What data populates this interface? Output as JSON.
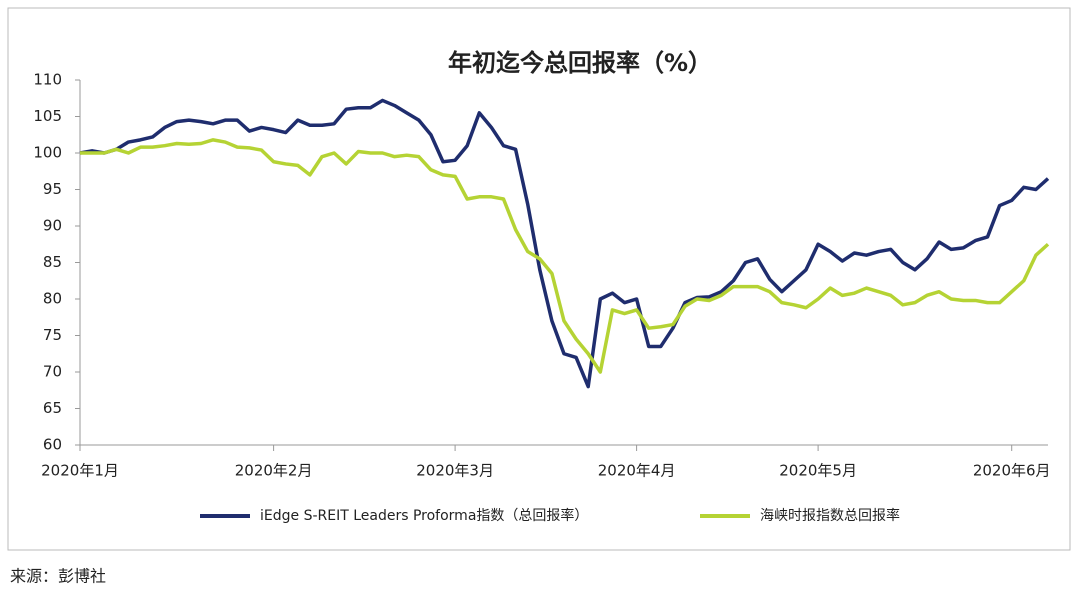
{
  "chart_data": {
    "type": "line",
    "title": "年初迄今总回报率（%）",
    "categories": [
      "2020年1月",
      null,
      null,
      null,
      null,
      null,
      null,
      null,
      null,
      null,
      null,
      null,
      null,
      null,
      null,
      null,
      "2020年2月",
      null,
      null,
      null,
      null,
      null,
      null,
      null,
      null,
      null,
      null,
      null,
      null,
      null,
      null,
      "2020年3月",
      null,
      null,
      null,
      null,
      null,
      null,
      null,
      null,
      null,
      null,
      null,
      null,
      null,
      null,
      "2020年4月",
      null,
      null,
      null,
      null,
      null,
      null,
      null,
      null,
      null,
      null,
      null,
      null,
      null,
      null,
      "2020年5月",
      null,
      null,
      null,
      null,
      null,
      null,
      null,
      null,
      null,
      null,
      null,
      null,
      null,
      null,
      null,
      "2020年6月",
      null,
      null,
      null
    ],
    "series": [
      {
        "name": "iEdge S-REIT Leaders Proforma指数（总回报率）",
        "color": "#1f2d6e",
        "values": [
          100,
          100.3,
          100,
          100.5,
          101.5,
          101.8,
          102.2,
          103.5,
          104.3,
          104.5,
          104.3,
          104,
          104.5,
          104.5,
          103,
          103.5,
          103.2,
          102.8,
          104.5,
          103.8,
          103.8,
          104,
          106,
          106.2,
          106.2,
          107.2,
          106.5,
          105.5,
          104.5,
          102.5,
          98.8,
          99,
          101,
          105.5,
          103.5,
          101,
          100.5,
          93,
          84,
          77,
          72.5,
          72,
          68,
          80,
          80.8,
          79.5,
          80,
          73.5,
          73.5,
          76,
          79.5,
          80.2,
          80.3,
          81,
          82.5,
          85,
          85.5,
          82.7,
          81,
          82.5,
          84,
          87.5,
          86.5,
          85.2,
          86.3,
          86,
          86.5,
          86.8,
          85,
          84,
          85.5,
          87.8,
          86.8,
          87,
          88,
          88.5,
          92.8,
          93.5,
          95.3,
          95,
          96.5
        ]
      },
      {
        "name": "海峡时报指数总回报率",
        "color": "#b5d334",
        "values": [
          100,
          100,
          100,
          100.5,
          100,
          100.8,
          100.8,
          101,
          101.3,
          101.2,
          101.3,
          101.8,
          101.5,
          100.8,
          100.7,
          100.4,
          98.8,
          98.5,
          98.3,
          97,
          99.5,
          100,
          98.5,
          100.2,
          100,
          100,
          99.5,
          99.7,
          99.5,
          97.7,
          97,
          96.8,
          93.7,
          94,
          94,
          93.7,
          89.5,
          86.5,
          85.5,
          83.5,
          77,
          74.5,
          72.5,
          70,
          78.5,
          78,
          78.5,
          76,
          76.2,
          76.5,
          79,
          80,
          79.8,
          80.5,
          81.7,
          81.7,
          81.7,
          81,
          79.5,
          79.2,
          78.8,
          80,
          81.5,
          80.5,
          80.8,
          81.5,
          81,
          80.5,
          79.2,
          79.5,
          80.5,
          81,
          80,
          79.8,
          79.8,
          79.5,
          79.5,
          81,
          82.5,
          86,
          87.5
        ]
      }
    ],
    "ylim": [
      60,
      110
    ],
    "yticks": [
      60,
      65,
      70,
      75,
      80,
      85,
      90,
      95,
      100,
      105,
      110
    ],
    "source": "来源：彭博社"
  }
}
